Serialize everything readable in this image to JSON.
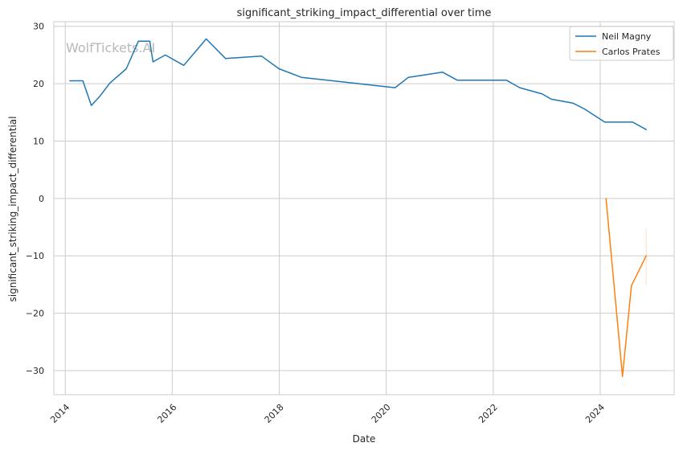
{
  "chart_data": {
    "type": "line",
    "title": "significant_striking_impact_differential over time",
    "xlabel": "Date",
    "ylabel": "significant_striking_impact_differential",
    "watermark": "WolfTickets.AI",
    "xlim": [
      "2013-10-15",
      "2025-05-20"
    ],
    "ylim": [
      -34.2,
      30.8
    ],
    "x_ticks": [
      {
        "date": "2014-01-01",
        "label": "2014"
      },
      {
        "date": "2016-01-01",
        "label": "2016"
      },
      {
        "date": "2018-01-01",
        "label": "2018"
      },
      {
        "date": "2020-01-01",
        "label": "2020"
      },
      {
        "date": "2022-01-01",
        "label": "2022"
      },
      {
        "date": "2024-01-01",
        "label": "2024"
      }
    ],
    "y_ticks": [
      {
        "value": 30,
        "label": "30"
      },
      {
        "value": 20,
        "label": "20"
      },
      {
        "value": 10,
        "label": "10"
      },
      {
        "value": 0,
        "label": "0"
      },
      {
        "value": -10,
        "label": "−10"
      },
      {
        "value": -20,
        "label": "−20"
      },
      {
        "value": -30,
        "label": "−30"
      }
    ],
    "grid": true,
    "legend_position": "top-right",
    "series": [
      {
        "name": "Neil Magny",
        "color": "#1f77b4",
        "points": [
          {
            "x": "2014-02-01",
            "y": 20.5
          },
          {
            "x": "2014-05-01",
            "y": 20.5
          },
          {
            "x": "2014-06-28",
            "y": 16.2
          },
          {
            "x": "2014-08-25",
            "y": 17.8
          },
          {
            "x": "2014-11-01",
            "y": 20.1
          },
          {
            "x": "2015-02-22",
            "y": 22.6
          },
          {
            "x": "2015-05-15",
            "y": 27.4
          },
          {
            "x": "2015-08-01",
            "y": 27.4
          },
          {
            "x": "2015-08-23",
            "y": 23.8
          },
          {
            "x": "2015-11-15",
            "y": 25.0
          },
          {
            "x": "2016-03-20",
            "y": 23.2
          },
          {
            "x": "2016-08-20",
            "y": 27.8
          },
          {
            "x": "2016-12-30",
            "y": 24.4
          },
          {
            "x": "2017-09-02",
            "y": 24.8
          },
          {
            "x": "2017-12-30",
            "y": 22.6
          },
          {
            "x": "2018-06-01",
            "y": 21.1
          },
          {
            "x": "2019-01-01",
            "y": 20.5
          },
          {
            "x": "2020-03-01",
            "y": 19.3
          },
          {
            "x": "2020-06-01",
            "y": 21.1
          },
          {
            "x": "2021-01-20",
            "y": 22.0
          },
          {
            "x": "2021-05-01",
            "y": 20.6
          },
          {
            "x": "2022-04-01",
            "y": 20.6
          },
          {
            "x": "2022-07-01",
            "y": 19.3
          },
          {
            "x": "2022-12-01",
            "y": 18.2
          },
          {
            "x": "2023-02-01",
            "y": 17.3
          },
          {
            "x": "2023-07-01",
            "y": 16.6
          },
          {
            "x": "2023-09-15",
            "y": 15.6
          },
          {
            "x": "2024-02-01",
            "y": 13.3
          },
          {
            "x": "2024-08-10",
            "y": 13.3
          },
          {
            "x": "2024-11-10",
            "y": 12.0
          }
        ]
      },
      {
        "name": "Carlos Prates",
        "color": "#ff7f0e",
        "points": [
          {
            "x": "2024-02-10",
            "y": 0
          },
          {
            "x": "2024-06-01",
            "y": -31.0
          },
          {
            "x": "2024-08-01",
            "y": -15.2
          },
          {
            "x": "2024-11-10",
            "y": -10.0
          }
        ],
        "error_band": {
          "x": "2024-11-10",
          "low": -15.0,
          "high": -5.2
        }
      }
    ]
  }
}
